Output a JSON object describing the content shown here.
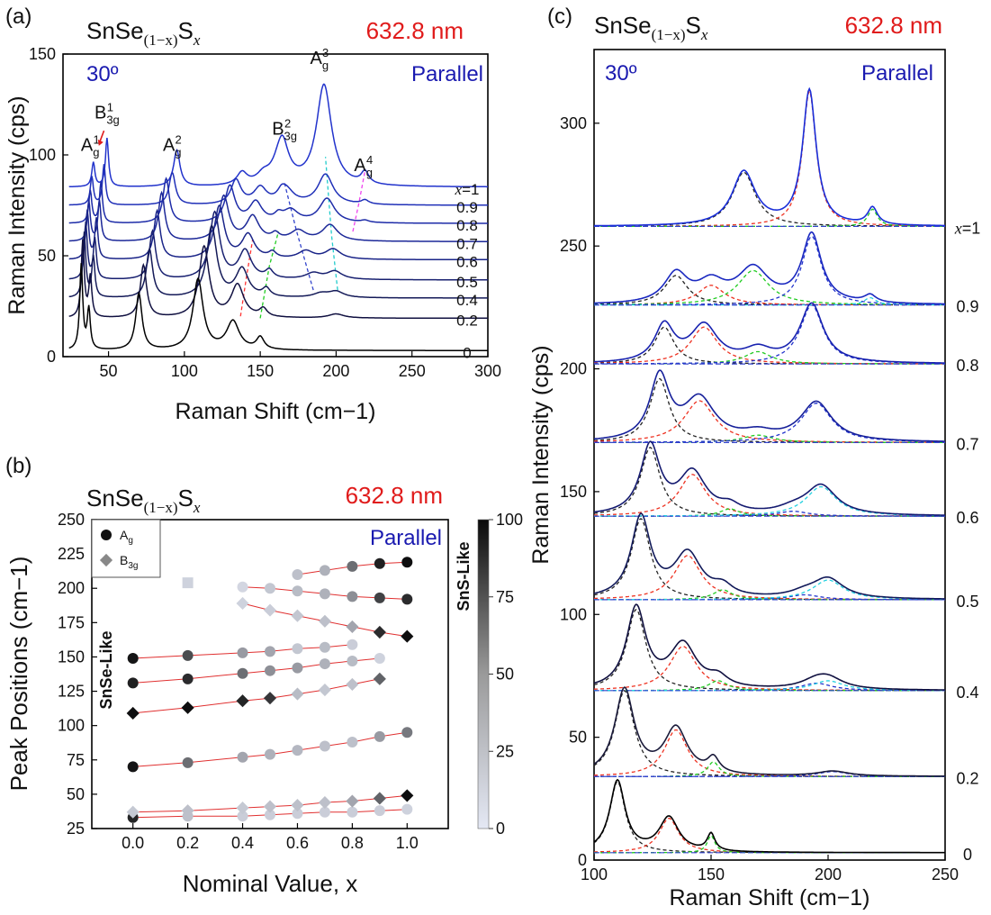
{
  "chart_data": [
    {
      "panel": "(a)",
      "type": "line",
      "compound": "SnSe(1−x)Sx",
      "compound_parts": {
        "base": "SnSe",
        "sub": "(1−x)",
        "s": "S",
        "x": "x"
      },
      "wavelength": "632.8 nm",
      "angle": "30º",
      "polarization": "Parallel",
      "xlabel": "Raman Shift (cm−1)",
      "ylabel": "Raman Intensity (cps)",
      "xlim": [
        20,
        300
      ],
      "ylim": [
        0,
        150
      ],
      "xticks": [
        50,
        100,
        150,
        200,
        250,
        300
      ],
      "yticks": [
        0,
        50,
        100,
        150
      ],
      "grid": false,
      "series_labels": [
        "x=1",
        "0.9",
        "0.8",
        "0.7",
        "0.6",
        "0.5",
        "0.4",
        "0.2",
        "0"
      ],
      "offsets": [
        84,
        75,
        66,
        57,
        48,
        38,
        29,
        19,
        3
      ],
      "peaks": [
        {
          "comp": [
            0,
            0.2,
            0.4,
            0.5,
            0.6,
            0.7,
            0.8,
            0.9,
            1.0
          ],
          "pos": [
            32,
            33,
            34,
            35,
            36,
            37,
            38,
            39,
            40
          ],
          "amp": [
            42,
            38,
            32,
            28,
            24,
            20,
            16,
            14,
            12
          ],
          "w": 1.2
        },
        {
          "comp": [
            0,
            0.2,
            0.4,
            0.5,
            0.6,
            0.7,
            0.8,
            0.9,
            1.0
          ],
          "pos": [
            37,
            38,
            40,
            41,
            42,
            44,
            45,
            47,
            49
          ],
          "amp": [
            20,
            20,
            20,
            20,
            20,
            20,
            20,
            20,
            24
          ],
          "w": 1.2
        },
        {
          "comp": [
            0,
            0.2,
            0.4,
            0.5,
            0.6,
            0.7,
            0.8,
            0.9,
            1.0
          ],
          "pos": [
            70,
            73,
            77,
            79,
            82,
            85,
            88,
            92,
            95
          ],
          "amp": [
            28,
            26,
            24,
            24,
            24,
            24,
            22,
            16,
            18
          ],
          "w": 2.5
        },
        {
          "comp": [
            0,
            0.2,
            0.4,
            0.5,
            0.6,
            0.7,
            0.8,
            0.9,
            1.0
          ],
          "pos": [
            109,
            113,
            118,
            120,
            123,
            126,
            130,
            134,
            138
          ],
          "amp": [
            35,
            35,
            35,
            33,
            26,
            22,
            18,
            12,
            6
          ],
          "w": 4
        },
        {
          "comp": [
            0,
            0.2,
            0.4,
            0.5,
            0.6,
            0.7,
            0.8,
            0.9,
            1.0
          ],
          "pos": [
            132,
            135,
            138,
            140,
            142,
            145,
            147,
            150,
            152
          ],
          "amp": [
            14,
            16,
            14,
            14,
            12,
            12,
            10,
            8,
            4
          ],
          "w": 5
        },
        {
          "comp": [
            0,
            0.2,
            0.4,
            0.5,
            0.6,
            0.7,
            0.8,
            0.9,
            1.0
          ],
          "pos": [
            150,
            152,
            154,
            156,
            158,
            160,
            162,
            164,
            165
          ],
          "amp": [
            6,
            4,
            4,
            4,
            3,
            3,
            3,
            3,
            3
          ],
          "w": 3
        },
        {
          "comp": [
            0,
            0.2,
            0.4,
            0.5,
            0.6,
            0.7,
            0.8,
            0.9,
            1.0
          ],
          "pos": [
            200,
            200,
            200,
            199,
            198,
            196,
            194,
            193,
            192
          ],
          "amp": [
            0,
            2,
            3,
            4,
            5,
            8,
            12,
            15,
            50
          ],
          "w": 6
        },
        {
          "comp": [
            0,
            0.2,
            0.4,
            0.5,
            0.6,
            0.7,
            0.8,
            0.9,
            1.0
          ],
          "pos": [
            200,
            195,
            190,
            185,
            180,
            175,
            170,
            167,
            164
          ],
          "amp": [
            0,
            0,
            2,
            3,
            4,
            5,
            6,
            7,
            20
          ],
          "w": 6
        },
        {
          "comp": [
            0,
            0.2,
            0.4,
            0.5,
            0.6,
            0.7,
            0.8,
            0.9,
            1.0
          ],
          "pos": [
            219,
            219,
            219,
            219,
            219,
            219,
            219,
            219,
            219
          ],
          "amp": [
            0,
            0,
            0,
            0,
            0,
            0,
            1,
            2,
            6
          ],
          "w": 3
        }
      ],
      "annotations": [
        {
          "main": "A",
          "sub": "g",
          "sup": "1",
          "x": 38,
          "y": 102
        },
        {
          "main": "B",
          "sub": "3g",
          "sup": "1",
          "x": 49,
          "y": 118
        },
        {
          "main": "A",
          "sub": "g",
          "sup": "2",
          "x": 92,
          "y": 102
        },
        {
          "main": "B",
          "sub": "3g",
          "sup": "2",
          "x": 166,
          "y": 110
        },
        {
          "main": "A",
          "sub": "g",
          "sup": "3",
          "x": 189,
          "y": 145
        },
        {
          "main": "A",
          "sub": "g",
          "sup": "4",
          "x": 218,
          "y": 92
        }
      ],
      "trend_lines": [
        {
          "color": "#ff3333",
          "points": [
            [
              137,
              20
            ],
            [
              141,
              40
            ],
            [
              145,
              58
            ]
          ]
        },
        {
          "color": "#22cc22",
          "points": [
            [
              150,
              19
            ],
            [
              156,
              45
            ],
            [
              162,
              62
            ]
          ]
        },
        {
          "color": "#3344cc",
          "points": [
            [
              185,
              33
            ],
            [
              174,
              62
            ],
            [
              166,
              86
            ]
          ]
        },
        {
          "color": "#22cccc",
          "points": [
            [
              201,
              33
            ],
            [
              197,
              60
            ],
            [
              193,
              99
            ]
          ]
        },
        {
          "color": "#ee44ee",
          "points": [
            [
              211,
              62
            ],
            [
              215,
              76
            ],
            [
              219,
              92
            ]
          ]
        }
      ]
    },
    {
      "panel": "(b)",
      "type": "scatter",
      "compound": "SnSe(1−x)Sx",
      "compound_parts": {
        "base": "SnSe",
        "sub": "(1−x)",
        "s": "S",
        "x": "x"
      },
      "wavelength": "632.8 nm",
      "polarization": "Parallel",
      "xlabel": "Nominal Value, x",
      "ylabel": "Peak Positions (cm−1)",
      "xlim": [
        -0.15,
        1.15
      ],
      "ylim": [
        25,
        250
      ],
      "xticks": [
        0.0,
        0.2,
        0.4,
        0.6,
        0.8,
        1.0
      ],
      "yticks": [
        25,
        50,
        75,
        100,
        125,
        150,
        175,
        200,
        225,
        250
      ],
      "legend": [
        {
          "label": "Ag",
          "main": "A",
          "sub": "g",
          "marker": "circle"
        },
        {
          "label": "B3g",
          "main": "B",
          "sub": "3g",
          "marker": "diamond"
        }
      ],
      "legend_position": "top-left",
      "colorbar": {
        "min": 0,
        "max": 100,
        "ticks": [
          0,
          25,
          50,
          75,
          100
        ]
      },
      "side_labels": {
        "left": "SnSe-Like",
        "right": "SnS-Like"
      },
      "series": [
        {
          "marker": "circle",
          "x": [
            0.0,
            0.2,
            0.4,
            0.5,
            0.6,
            0.7,
            0.8,
            0.9,
            1.0
          ],
          "y": [
            33,
            34,
            34,
            35,
            36,
            37,
            37,
            38,
            39
          ],
          "w": [
            88,
            18,
            12,
            12,
            12,
            12,
            12,
            12,
            10
          ]
        },
        {
          "marker": "diamond",
          "x": [
            0.0,
            0.2,
            0.4,
            0.5,
            0.6,
            0.7,
            0.8,
            0.9,
            1.0
          ],
          "y": [
            37,
            38,
            40,
            41,
            42,
            44,
            45,
            47,
            49
          ],
          "w": [
            14,
            18,
            14,
            18,
            18,
            18,
            30,
            60,
            98
          ]
        },
        {
          "marker": "circle",
          "x": [
            0.0,
            0.2,
            0.4,
            0.5,
            0.6,
            0.7,
            0.8,
            0.9,
            1.0
          ],
          "y": [
            70,
            73,
            77,
            79,
            82,
            85,
            88,
            92,
            95
          ],
          "w": [
            95,
            55,
            30,
            25,
            22,
            18,
            18,
            35,
            50
          ]
        },
        {
          "marker": "diamond",
          "x": [
            0.0,
            0.2,
            0.4,
            0.5,
            0.6,
            0.7,
            0.8,
            0.9
          ],
          "y": [
            109,
            113,
            118,
            120,
            123,
            126,
            130,
            134
          ],
          "w": [
            98,
            98,
            88,
            80,
            20,
            15,
            18,
            60
          ]
        },
        {
          "marker": "circle",
          "x": [
            0.0,
            0.2,
            0.4,
            0.5,
            0.6,
            0.7,
            0.8,
            0.9
          ],
          "y": [
            131,
            134,
            138,
            140,
            142,
            145,
            147,
            149
          ],
          "w": [
            90,
            85,
            55,
            40,
            35,
            25,
            20,
            10
          ]
        },
        {
          "marker": "circle",
          "x": [
            0.0,
            0.2,
            0.4,
            0.5,
            0.6,
            0.7,
            0.8
          ],
          "y": [
            149,
            151,
            153,
            154,
            156,
            157,
            159
          ],
          "w": [
            95,
            70,
            35,
            30,
            15,
            20,
            12
          ]
        },
        {
          "marker": "diamond",
          "x": [
            0.4,
            0.5,
            0.6,
            0.7,
            0.8,
            0.9,
            1.0
          ],
          "y": [
            189,
            184,
            180,
            176,
            172,
            168,
            165
          ],
          "w": [
            10,
            12,
            15,
            18,
            30,
            85,
            98
          ]
        },
        {
          "marker": "circle",
          "x": [
            0.4,
            0.5,
            0.6,
            0.7,
            0.8,
            0.9,
            1.0
          ],
          "y": [
            201,
            200,
            198,
            196,
            194,
            193,
            192
          ],
          "w": [
            8,
            15,
            20,
            25,
            40,
            75,
            85
          ]
        },
        {
          "marker": "circle",
          "x": [
            0.6,
            0.7,
            0.8,
            0.9,
            1.0
          ],
          "y": [
            210,
            213,
            216,
            218,
            219
          ],
          "w": [
            18,
            25,
            55,
            90,
            98
          ]
        },
        {
          "marker": "square",
          "x": [
            0.2
          ],
          "y": [
            204
          ],
          "w": [
            10
          ]
        }
      ]
    },
    {
      "panel": "(c)",
      "type": "line",
      "compound": "SnSe(1−x)Sx",
      "compound_parts": {
        "base": "SnSe",
        "sub": "(1−x)",
        "s": "S",
        "x": "x"
      },
      "wavelength": "632.8 nm",
      "angle": "30º",
      "polarization": "Parallel",
      "xlabel": "Raman Shift (cm−1)",
      "ylabel": "Raman Intensity (cps)",
      "xlim": [
        100,
        250
      ],
      "ylim": [
        0,
        330
      ],
      "xticks": [
        100,
        150,
        200,
        250
      ],
      "yticks": [
        0,
        50,
        100,
        150,
        200,
        250,
        300
      ],
      "grid": false,
      "series_labels": [
        "0",
        "0.2",
        "0.4",
        "0.5",
        "0.6",
        "0.7",
        "0.8",
        "0.9",
        "x=1"
      ],
      "series": [
        {
          "label": "0",
          "color": "#000000",
          "baseline": 3,
          "peaks": [
            [
              110,
              29,
              4
            ],
            [
              132,
              14,
              5
            ],
            [
              150,
              7,
              2
            ]
          ]
        },
        {
          "label": "0.2",
          "color": "#1a1a3a",
          "baseline": 34,
          "peaks": [
            [
              113,
              35,
              5
            ],
            [
              135,
              19,
              6
            ],
            [
              151,
              6,
              3
            ],
            [
              202,
              2,
              8
            ]
          ]
        },
        {
          "label": "0.4",
          "color": "#101040",
          "baseline": 69,
          "peaks": [
            [
              118,
              33,
              5
            ],
            [
              138,
              18,
              7
            ],
            [
              153,
              4,
              5
            ],
            [
              195,
              3,
              8
            ],
            [
              200,
              4,
              8
            ]
          ]
        },
        {
          "label": "0.5",
          "color": "#121a5a",
          "baseline": 106,
          "peaks": [
            [
              120,
              33,
              5
            ],
            [
              140,
              18,
              7
            ],
            [
              155,
              4,
              5
            ],
            [
              190,
              2,
              8
            ],
            [
              200,
              8,
              8
            ]
          ]
        },
        {
          "label": "0.6",
          "color": "#141a70",
          "baseline": 140,
          "peaks": [
            [
              124,
              28,
              5
            ],
            [
              142,
              17,
              7
            ],
            [
              158,
              3,
              5
            ],
            [
              185,
              2,
              8
            ],
            [
              197,
              12,
              8
            ]
          ]
        },
        {
          "label": "0.7",
          "color": "#16209a",
          "baseline": 170,
          "peaks": [
            [
              128,
              26,
              5
            ],
            [
              145,
              17,
              8
            ],
            [
              170,
              3,
              8
            ],
            [
              195,
              16,
              8
            ]
          ]
        },
        {
          "label": "0.8",
          "color": "#1822b0",
          "baseline": 202,
          "peaks": [
            [
              130,
              15,
              5
            ],
            [
              147,
              15,
              7
            ],
            [
              170,
              5,
              7
            ],
            [
              193,
              24,
              6
            ]
          ]
        },
        {
          "label": "0.9",
          "color": "#1a28c0",
          "baseline": 226,
          "peaks": [
            [
              135,
              12,
              6
            ],
            [
              150,
              8,
              7
            ],
            [
              168,
              14,
              8
            ],
            [
              193,
              28,
              5
            ],
            [
              218,
              3,
              3
            ]
          ]
        },
        {
          "label": "x=1",
          "color": "#1a2ed8",
          "baseline": 258,
          "peaks": [
            [
              164,
              22,
              6
            ],
            [
              192,
              55,
              3.5
            ],
            [
              219,
              7,
              2.5
            ]
          ]
        }
      ],
      "component_colors": [
        "#222222",
        "#ee3322",
        "#22cc22",
        "#2233cc",
        "#22d0e0",
        "#ee44ee"
      ]
    }
  ]
}
